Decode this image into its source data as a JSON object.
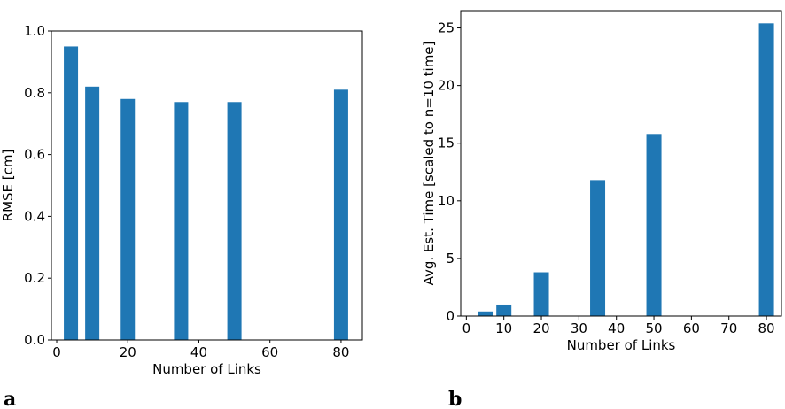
{
  "chart_data": [
    {
      "type": "bar",
      "panel_label": "a",
      "x": [
        4,
        10,
        20,
        35,
        50,
        80
      ],
      "values": [
        0.95,
        0.82,
        0.78,
        0.77,
        0.77,
        0.81
      ],
      "color": "#1f77b4",
      "xlabel": "Number of Links",
      "ylabel": "RMSE [cm]",
      "xlim": [
        -1.5,
        86
      ],
      "ylim": [
        0,
        1.0
      ],
      "xticks": [
        0,
        20,
        40,
        60,
        80
      ],
      "yticks": [
        0.0,
        0.2,
        0.4,
        0.6,
        0.8,
        1.0
      ],
      "ytick_labels": [
        "0.0",
        "0.2",
        "0.4",
        "0.6",
        "0.8",
        "1.0"
      ],
      "grid": false
    },
    {
      "type": "bar",
      "panel_label": "b",
      "x": [
        5,
        10,
        20,
        35,
        50,
        80
      ],
      "values": [
        0.4,
        1.0,
        3.8,
        11.8,
        15.8,
        25.4
      ],
      "color": "#1f77b4",
      "xlabel": "Number of Links",
      "ylabel": "Avg. Est. Time [scaled to n=10 time]",
      "xlim": [
        -1.5,
        84
      ],
      "ylim": [
        0,
        26.5
      ],
      "xticks": [
        0,
        10,
        20,
        30,
        40,
        50,
        60,
        70,
        80
      ],
      "yticks": [
        0,
        5,
        10,
        15,
        20,
        25
      ],
      "ytick_labels": [
        "0",
        "5",
        "10",
        "15",
        "20",
        "25"
      ],
      "grid": false
    }
  ]
}
